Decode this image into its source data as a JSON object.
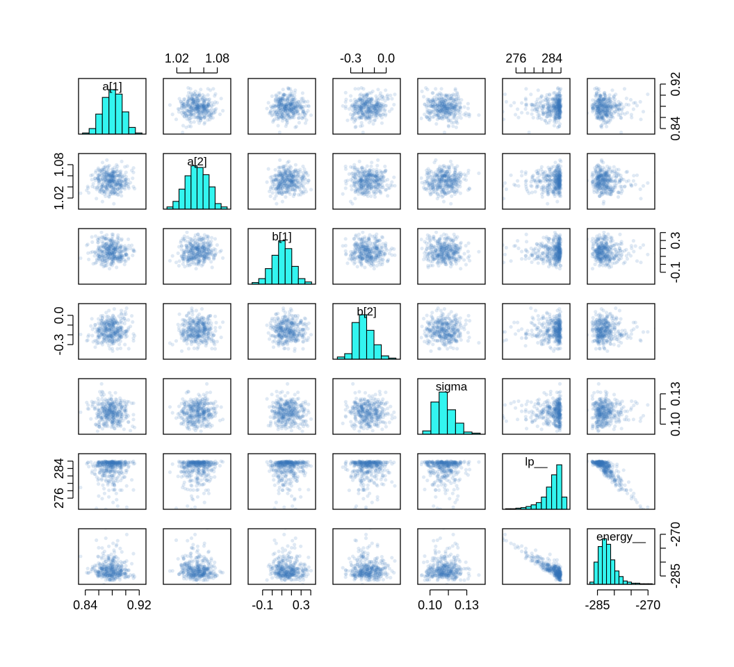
{
  "chart_data": {
    "type": "scatter",
    "kind": "pairs-matrix",
    "variables": [
      "a[1]",
      "a[2]",
      "b[1]",
      "b[2]",
      "sigma",
      "lp__",
      "energy__"
    ],
    "ranges": {
      "a[1]": [
        0.83,
        0.93
      ],
      "a[2]": [
        1.0,
        1.1
      ],
      "b[1]": [
        -0.25,
        0.45
      ],
      "b[2]": [
        -0.45,
        0.12
      ],
      "sigma": [
        0.09,
        0.145
      ],
      "lp__": [
        273,
        288
      ],
      "energy__": [
        -288,
        -268
      ]
    },
    "axis_ticks": {
      "a[1]": {
        "values": [
          0.84,
          0.86,
          0.88,
          0.9,
          0.92
        ],
        "labels": [
          "0.84",
          "",
          "",
          "",
          "0.92"
        ]
      },
      "a[2]": {
        "values": [
          1.02,
          1.04,
          1.06,
          1.08
        ],
        "labels": [
          "1.02",
          "",
          "",
          "1.08"
        ]
      },
      "b[1]": {
        "values": [
          -0.1,
          0.0,
          0.1,
          0.2,
          0.3,
          0.4
        ],
        "labels": [
          "-0.1",
          "",
          "",
          "",
          "0.3",
          ""
        ]
      },
      "b[2]": {
        "values": [
          -0.3,
          -0.2,
          -0.1,
          0.0
        ],
        "labels": [
          "-0.3",
          "",
          "",
          "0.0"
        ]
      },
      "sigma": {
        "values": [
          0.1,
          0.115,
          0.13
        ],
        "labels": [
          "0.10",
          "",
          "0.13"
        ]
      },
      "lp__": {
        "values": [
          276,
          278,
          280,
          282,
          284,
          286
        ],
        "labels": [
          "276",
          "",
          "",
          "",
          "284",
          ""
        ]
      },
      "energy__": {
        "values": [
          -285,
          -280,
          -275,
          -270
        ],
        "labels": [
          "-285",
          "",
          "",
          "-270"
        ]
      }
    },
    "tick_sides": {
      "bottom": [
        "a[1]",
        "b[1]",
        "sigma",
        "energy__"
      ],
      "top": [
        "a[2]",
        "b[2]",
        "lp__"
      ],
      "left": [
        "a[2]",
        "b[2]",
        "lp__"
      ],
      "right": [
        "a[1]",
        "b[1]",
        "sigma",
        "energy__"
      ]
    },
    "marginal_histograms": {
      "a[1]": [
        0.02,
        0.1,
        0.36,
        0.66,
        0.8,
        0.72,
        0.4,
        0.12,
        0.02
      ],
      "a[2]": [
        0.04,
        0.14,
        0.36,
        0.6,
        0.78,
        0.75,
        0.62,
        0.4,
        0.1,
        0.04
      ],
      "b[1]": [
        0.03,
        0.1,
        0.28,
        0.52,
        0.78,
        0.64,
        0.32,
        0.1,
        0.04
      ],
      "b[2]": [
        0.04,
        0.1,
        0.66,
        0.8,
        0.52,
        0.26,
        0.06,
        0.02
      ],
      "sigma": [
        0.06,
        0.58,
        0.76,
        0.44,
        0.2,
        0.04,
        0.02
      ],
      "lp__": [
        0.01,
        0.01,
        0.02,
        0.03,
        0.05,
        0.08,
        0.12,
        0.22,
        0.4,
        0.62,
        0.8,
        0.22
      ],
      "energy__": [
        0.04,
        0.4,
        0.68,
        0.82,
        0.72,
        0.44,
        0.24,
        0.14,
        0.06,
        0.04,
        0.02,
        0.02,
        0.01,
        0.01,
        0.01
      ]
    },
    "correlations": {
      "a[1]|a[2]": 0,
      "a[1]|b[1]": 0,
      "a[1]|b[2]": 0,
      "a[1]|sigma": 0,
      "a[2]|b[1]": 0,
      "a[2]|b[2]": 0,
      "a[2]|sigma": 0,
      "b[1]|b[2]": 0,
      "b[1]|sigma": 0,
      "b[2]|sigma": 0,
      "lp__|energy__": -0.85
    },
    "points_per_panel": 360,
    "colors": {
      "points": "#3a78b8",
      "histogram_fill": "#33f5f0",
      "frame": "#000000",
      "background": "#ffffff"
    },
    "title": "",
    "xlabel": "",
    "ylabel": ""
  }
}
